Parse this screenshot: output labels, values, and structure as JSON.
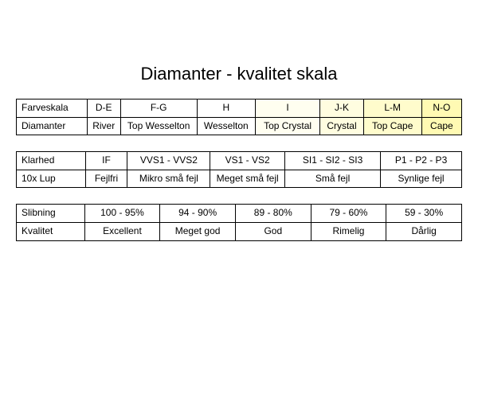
{
  "title": "Diamanter - kvalitet skala",
  "tables": {
    "color": {
      "label1": "Farveskala",
      "label2": "Diamanter",
      "widths": [
        85,
        40,
        92,
        70,
        78,
        52,
        70,
        48
      ],
      "row1": [
        "D-E",
        "F-G",
        "H",
        "I",
        "J-K",
        "L-M",
        "N-O"
      ],
      "row2": [
        "River",
        "Top Wesselton",
        "Wesselton",
        "Top Crystal",
        "Crystal",
        "Top Cape",
        "Cape"
      ],
      "bg_indexes": [
        0,
        0,
        0,
        1,
        2,
        3,
        4
      ],
      "bg_colors": [
        "#ffffff",
        "#fffef0",
        "#fffde0",
        "#fffccc",
        "#fffab3"
      ]
    },
    "clarity": {
      "label1": "Klarhed",
      "label2": "10x Lup",
      "widths": [
        85,
        52,
        102,
        92,
        118,
        100
      ],
      "row1": [
        "IF",
        "VVS1 - VVS2",
        "VS1 - VS2",
        "SI1 - SI2 - SI3",
        "P1 - P2 - P3"
      ],
      "row2": [
        "Fejlfri",
        "Mikro små fejl",
        "Meget små fejl",
        "Små fejl",
        "Synlige fejl"
      ]
    },
    "cut": {
      "label1": "Slibning",
      "label2": "Kvalitet",
      "widths": [
        85,
        94,
        94,
        94,
        94,
        94
      ],
      "row1": [
        "100 - 95%",
        "94 - 90%",
        "89 - 80%",
        "79 - 60%",
        "59 - 30%"
      ],
      "row2": [
        "Excellent",
        "Meget god",
        "God",
        "Rimelig",
        "Dårlig"
      ]
    }
  }
}
